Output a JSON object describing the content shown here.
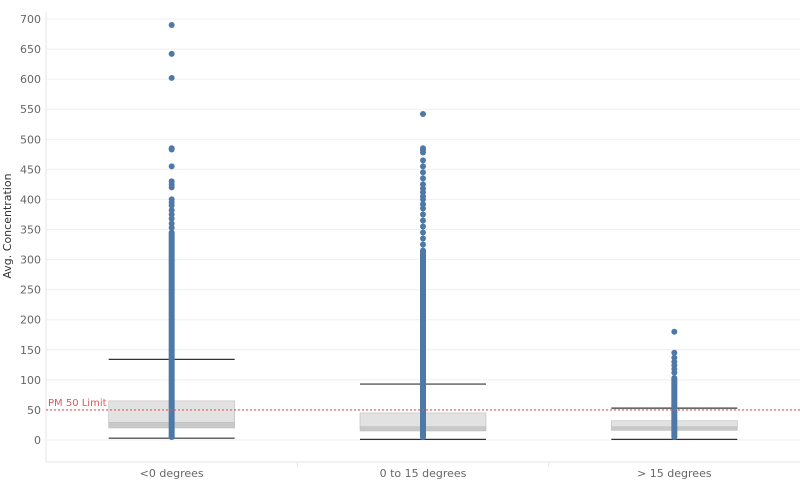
{
  "chart_data": {
    "type": "box",
    "ylabel": "Avg. Concentration",
    "ylim": [
      -40,
      700
    ],
    "yticks": [
      0,
      50,
      100,
      150,
      200,
      250,
      300,
      350,
      400,
      450,
      500,
      550,
      600,
      650,
      700
    ],
    "categories": [
      "<0 degrees",
      "0 to 15 degrees",
      "> 15 degrees"
    ],
    "reference_line": {
      "value": 50,
      "label": "PM 50 Limit",
      "color": "#e15759"
    },
    "point_color": "#4e79a7",
    "box_color_upper": "#e2e2e2",
    "box_color_lower": "#c9c9c9",
    "series": [
      {
        "category": "<0 degrees",
        "whisker_low": 3,
        "q1": 20,
        "median": 29,
        "q3": 65,
        "whisker_high": 134,
        "dense_range": [
          0,
          350
        ],
        "outliers": [
          353,
          360,
          368,
          375,
          382,
          390,
          395,
          400,
          420,
          425,
          430,
          455,
          483,
          485,
          602,
          642,
          690
        ]
      },
      {
        "category": "0 to 15 degrees",
        "whisker_low": 1,
        "q1": 15,
        "median": 22,
        "q3": 45,
        "whisker_high": 93,
        "dense_range": [
          0,
          320
        ],
        "outliers": [
          325,
          335,
          345,
          355,
          365,
          375,
          385,
          392,
          400,
          405,
          412,
          418,
          425,
          435,
          445,
          455,
          465,
          478,
          482,
          485,
          542
        ]
      },
      {
        "category": "> 15 degrees",
        "whisker_low": 1,
        "q1": 16,
        "median": 22,
        "q3": 32,
        "whisker_high": 53,
        "dense_range": [
          0,
          108
        ],
        "outliers": [
          112,
          118,
          124,
          130,
          137,
          145,
          180
        ]
      }
    ]
  }
}
